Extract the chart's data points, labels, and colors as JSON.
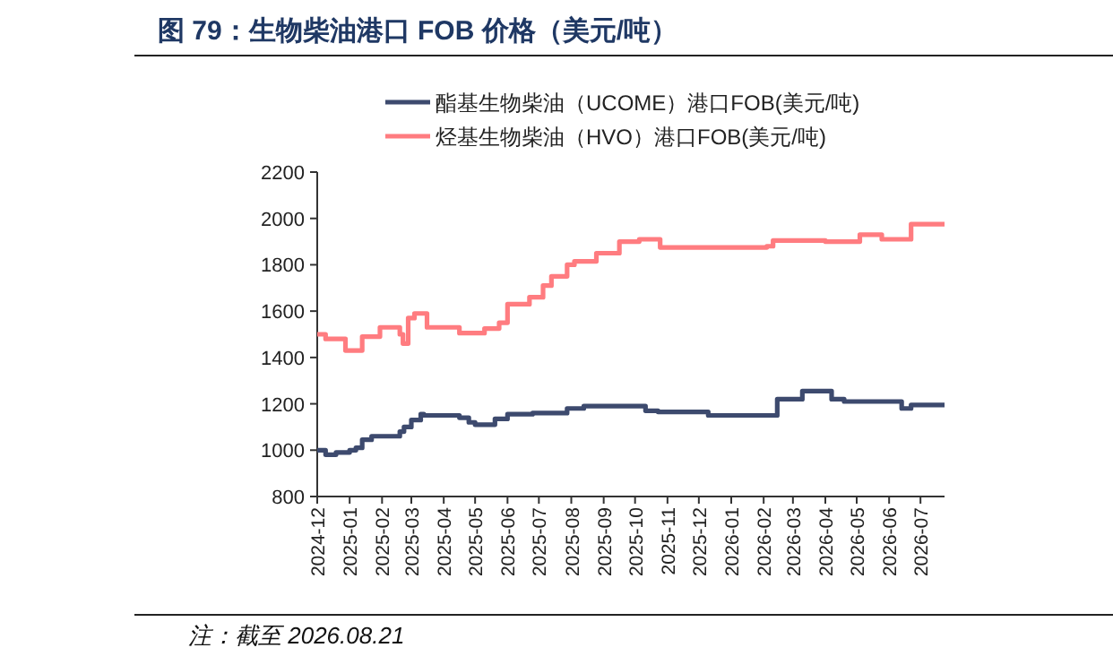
{
  "chart_data": {
    "type": "step",
    "title": "图 79：生物柴油港口 FOB 价格（美元/吨）",
    "annotations": [
      "注：截至 2026.08.21"
    ],
    "series": [
      {
        "name": "酯基生物柴油（UCOME）港口FOB(美元/吨)",
        "color": "#3d4a6e",
        "x": [
          "2024-12-01",
          "2024-12-09",
          "2024-12-19",
          "2025-01-01",
          "2025-01-07",
          "2025-01-13",
          "2025-01-22",
          "2025-02-18",
          "2025-02-22",
          "2025-03-01",
          "2025-03-10",
          "2025-03-13",
          "2025-04-16",
          "2025-04-25",
          "2025-05-01",
          "2025-05-20",
          "2025-06-01",
          "2025-06-25",
          "2025-07-28",
          "2025-08-13",
          "2025-10-11",
          "2025-10-23",
          "2025-12-10",
          "2026-02-14",
          "2026-03-10",
          "2026-04-07",
          "2026-04-19",
          "2026-06-13",
          "2026-06-22",
          "2026-07-24"
        ],
        "values": [
          1000,
          980,
          990,
          1000,
          1010,
          1045,
          1060,
          1080,
          1100,
          1130,
          1155,
          1150,
          1140,
          1120,
          1110,
          1135,
          1155,
          1160,
          1180,
          1190,
          1170,
          1165,
          1150,
          1220,
          1255,
          1220,
          1210,
          1180,
          1195,
          1195
        ]
      },
      {
        "name": "烃基生物柴油（HVO）港口FOB(美元/吨)",
        "color": "#ff7c80",
        "x": [
          "2024-12-01",
          "2024-12-09",
          "2024-12-28",
          "2025-01-13",
          "2025-01-30",
          "2025-02-18",
          "2025-02-21",
          "2025-02-26",
          "2025-03-04",
          "2025-03-16",
          "2025-04-16",
          "2025-05-10",
          "2025-05-24",
          "2025-06-01",
          "2025-06-22",
          "2025-07-05",
          "2025-07-13",
          "2025-07-28",
          "2025-08-04",
          "2025-08-25",
          "2025-09-16",
          "2025-10-05",
          "2025-10-25",
          "2026-02-04",
          "2026-02-10",
          "2026-04-01",
          "2026-05-04",
          "2026-05-25",
          "2026-06-22",
          "2026-07-24"
        ],
        "values": [
          1500,
          1480,
          1430,
          1490,
          1530,
          1500,
          1460,
          1570,
          1590,
          1530,
          1505,
          1525,
          1550,
          1630,
          1660,
          1710,
          1750,
          1800,
          1815,
          1850,
          1900,
          1910,
          1875,
          1880,
          1905,
          1900,
          1930,
          1910,
          1975,
          1975
        ]
      }
    ],
    "xlim": [
      "2024-12-01",
      "2026-07-24"
    ],
    "xticks": [
      {
        "value": "2024-12-01",
        "label": "2024-12"
      },
      {
        "value": "2025-01-01",
        "label": "2025-01"
      },
      {
        "value": "2025-02-01",
        "label": "2025-02"
      },
      {
        "value": "2025-03-01",
        "label": "2025-03"
      },
      {
        "value": "2025-04-01",
        "label": "2025-04"
      },
      {
        "value": "2025-05-01",
        "label": "2025-05"
      },
      {
        "value": "2025-06-01",
        "label": "2025-06"
      },
      {
        "value": "2025-07-01",
        "label": "2025-07"
      },
      {
        "value": "2025-08-01",
        "label": "2025-08"
      },
      {
        "value": "2025-09-01",
        "label": "2025-09"
      },
      {
        "value": "2025-10-01",
        "label": "2025-10"
      },
      {
        "value": "2025-11-01",
        "label": "2025-11"
      },
      {
        "value": "2025-12-01",
        "label": "2025-12"
      },
      {
        "value": "2026-01-01",
        "label": "2026-01"
      },
      {
        "value": "2026-02-01",
        "label": "2026-02"
      },
      {
        "value": "2026-03-01",
        "label": "2026-03"
      },
      {
        "value": "2026-04-01",
        "label": "2026-04"
      },
      {
        "value": "2026-05-01",
        "label": "2026-05"
      },
      {
        "value": "2026-06-01",
        "label": "2026-06"
      },
      {
        "value": "2026-07-01",
        "label": "2026-07"
      }
    ],
    "ylim": [
      800,
      2200
    ],
    "yticks": [
      800,
      1000,
      1200,
      1400,
      1600,
      1800,
      2000,
      2200
    ],
    "legend": "top",
    "grid": false,
    "line_style": "solid",
    "marker": "none"
  }
}
